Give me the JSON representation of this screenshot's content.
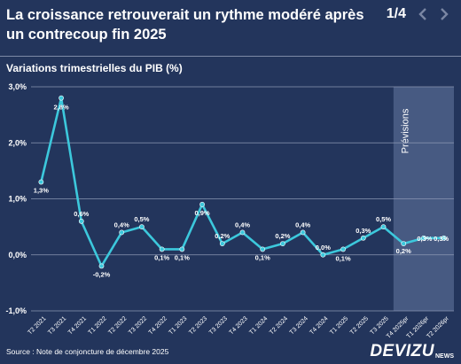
{
  "header": {
    "title": "La croissance retrouverait un rythme modéré après un contrecoup fin 2025",
    "page_indicator": "1/4",
    "prev_icon": "chevron-left-icon",
    "next_icon": "chevron-right-icon"
  },
  "footer": {
    "source": "Source : Note de conjoncture de décembre 2025",
    "brand": "DEVIZU",
    "brand_sub": "NEWS"
  },
  "colors": {
    "background": "#23355c",
    "line": "#3cc8dc",
    "forecast_band": "#4d6088",
    "grid": "#8b97b3"
  },
  "chart_data": {
    "type": "line",
    "title": "Variations trimestrielles du PIB (%)",
    "xlabel": "",
    "ylabel": "",
    "ylim": [
      -1.0,
      3.0
    ],
    "yticks": [
      "3,0%",
      "2,0%",
      "1,0%",
      "0,0%",
      "-1,0%"
    ],
    "grid": true,
    "categories": [
      "T2 2021",
      "T3 2021",
      "T4 2021",
      "T1 2022",
      "T2 2022",
      "T3 2022",
      "T4 2022",
      "T1 2023",
      "T2 2023",
      "T3 2023",
      "T4 2023",
      "T1 2024",
      "T2 2024",
      "T3 2024",
      "T4 2024",
      "T1 2025",
      "T2 2025",
      "T3 2025",
      "T4 2025pr",
      "T1 2026pr",
      "T2 2026pr"
    ],
    "series": [
      {
        "values": [
          1.3,
          2.8,
          0.6,
          -0.2,
          0.4,
          0.5,
          0.1,
          0.1,
          0.9,
          0.2,
          0.4,
          0.1,
          0.2,
          0.4,
          0.0,
          0.1,
          0.3,
          0.5,
          0.2,
          0.3,
          0.3
        ],
        "labels": [
          "1,3%",
          "2,8%",
          "0,6%",
          "-0,2%",
          "0,4%",
          "0,5%",
          "0,1%",
          "0,1%",
          "0,9%",
          "0,2%",
          "0,4%",
          "0,1%",
          "0,2%",
          "0,4%",
          "0,0%",
          "0,1%",
          "0,3%",
          "0,5%",
          "0,2%",
          "0,3%",
          "0,3%"
        ]
      }
    ],
    "forecast": {
      "label": "Prévisions",
      "start_category": "T4 2025pr",
      "end_category": "T2 2026pr"
    }
  }
}
